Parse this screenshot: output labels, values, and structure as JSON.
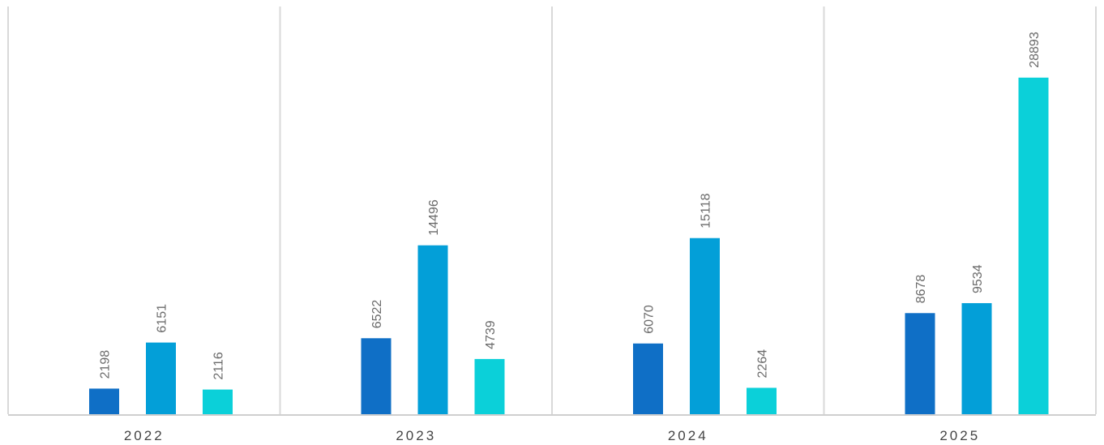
{
  "chart_data": {
    "type": "bar",
    "title": "",
    "xlabel": "",
    "ylabel": "",
    "categories": [
      "2022",
      "2023",
      "2024",
      "2025"
    ],
    "series": [
      {
        "color": "#0f6fc6",
        "values": [
          2198,
          6522,
          6070,
          8678
        ]
      },
      {
        "color": "#039fd8",
        "values": [
          6151,
          14496,
          15118,
          9534
        ]
      },
      {
        "color": "#0bd0d9",
        "values": [
          2116,
          4739,
          2264,
          28893
        ]
      }
    ],
    "ylim": [
      0,
      35000
    ],
    "grid": false,
    "legend": "none",
    "category_separators": true,
    "data_labels": "rotated, above bars"
  }
}
